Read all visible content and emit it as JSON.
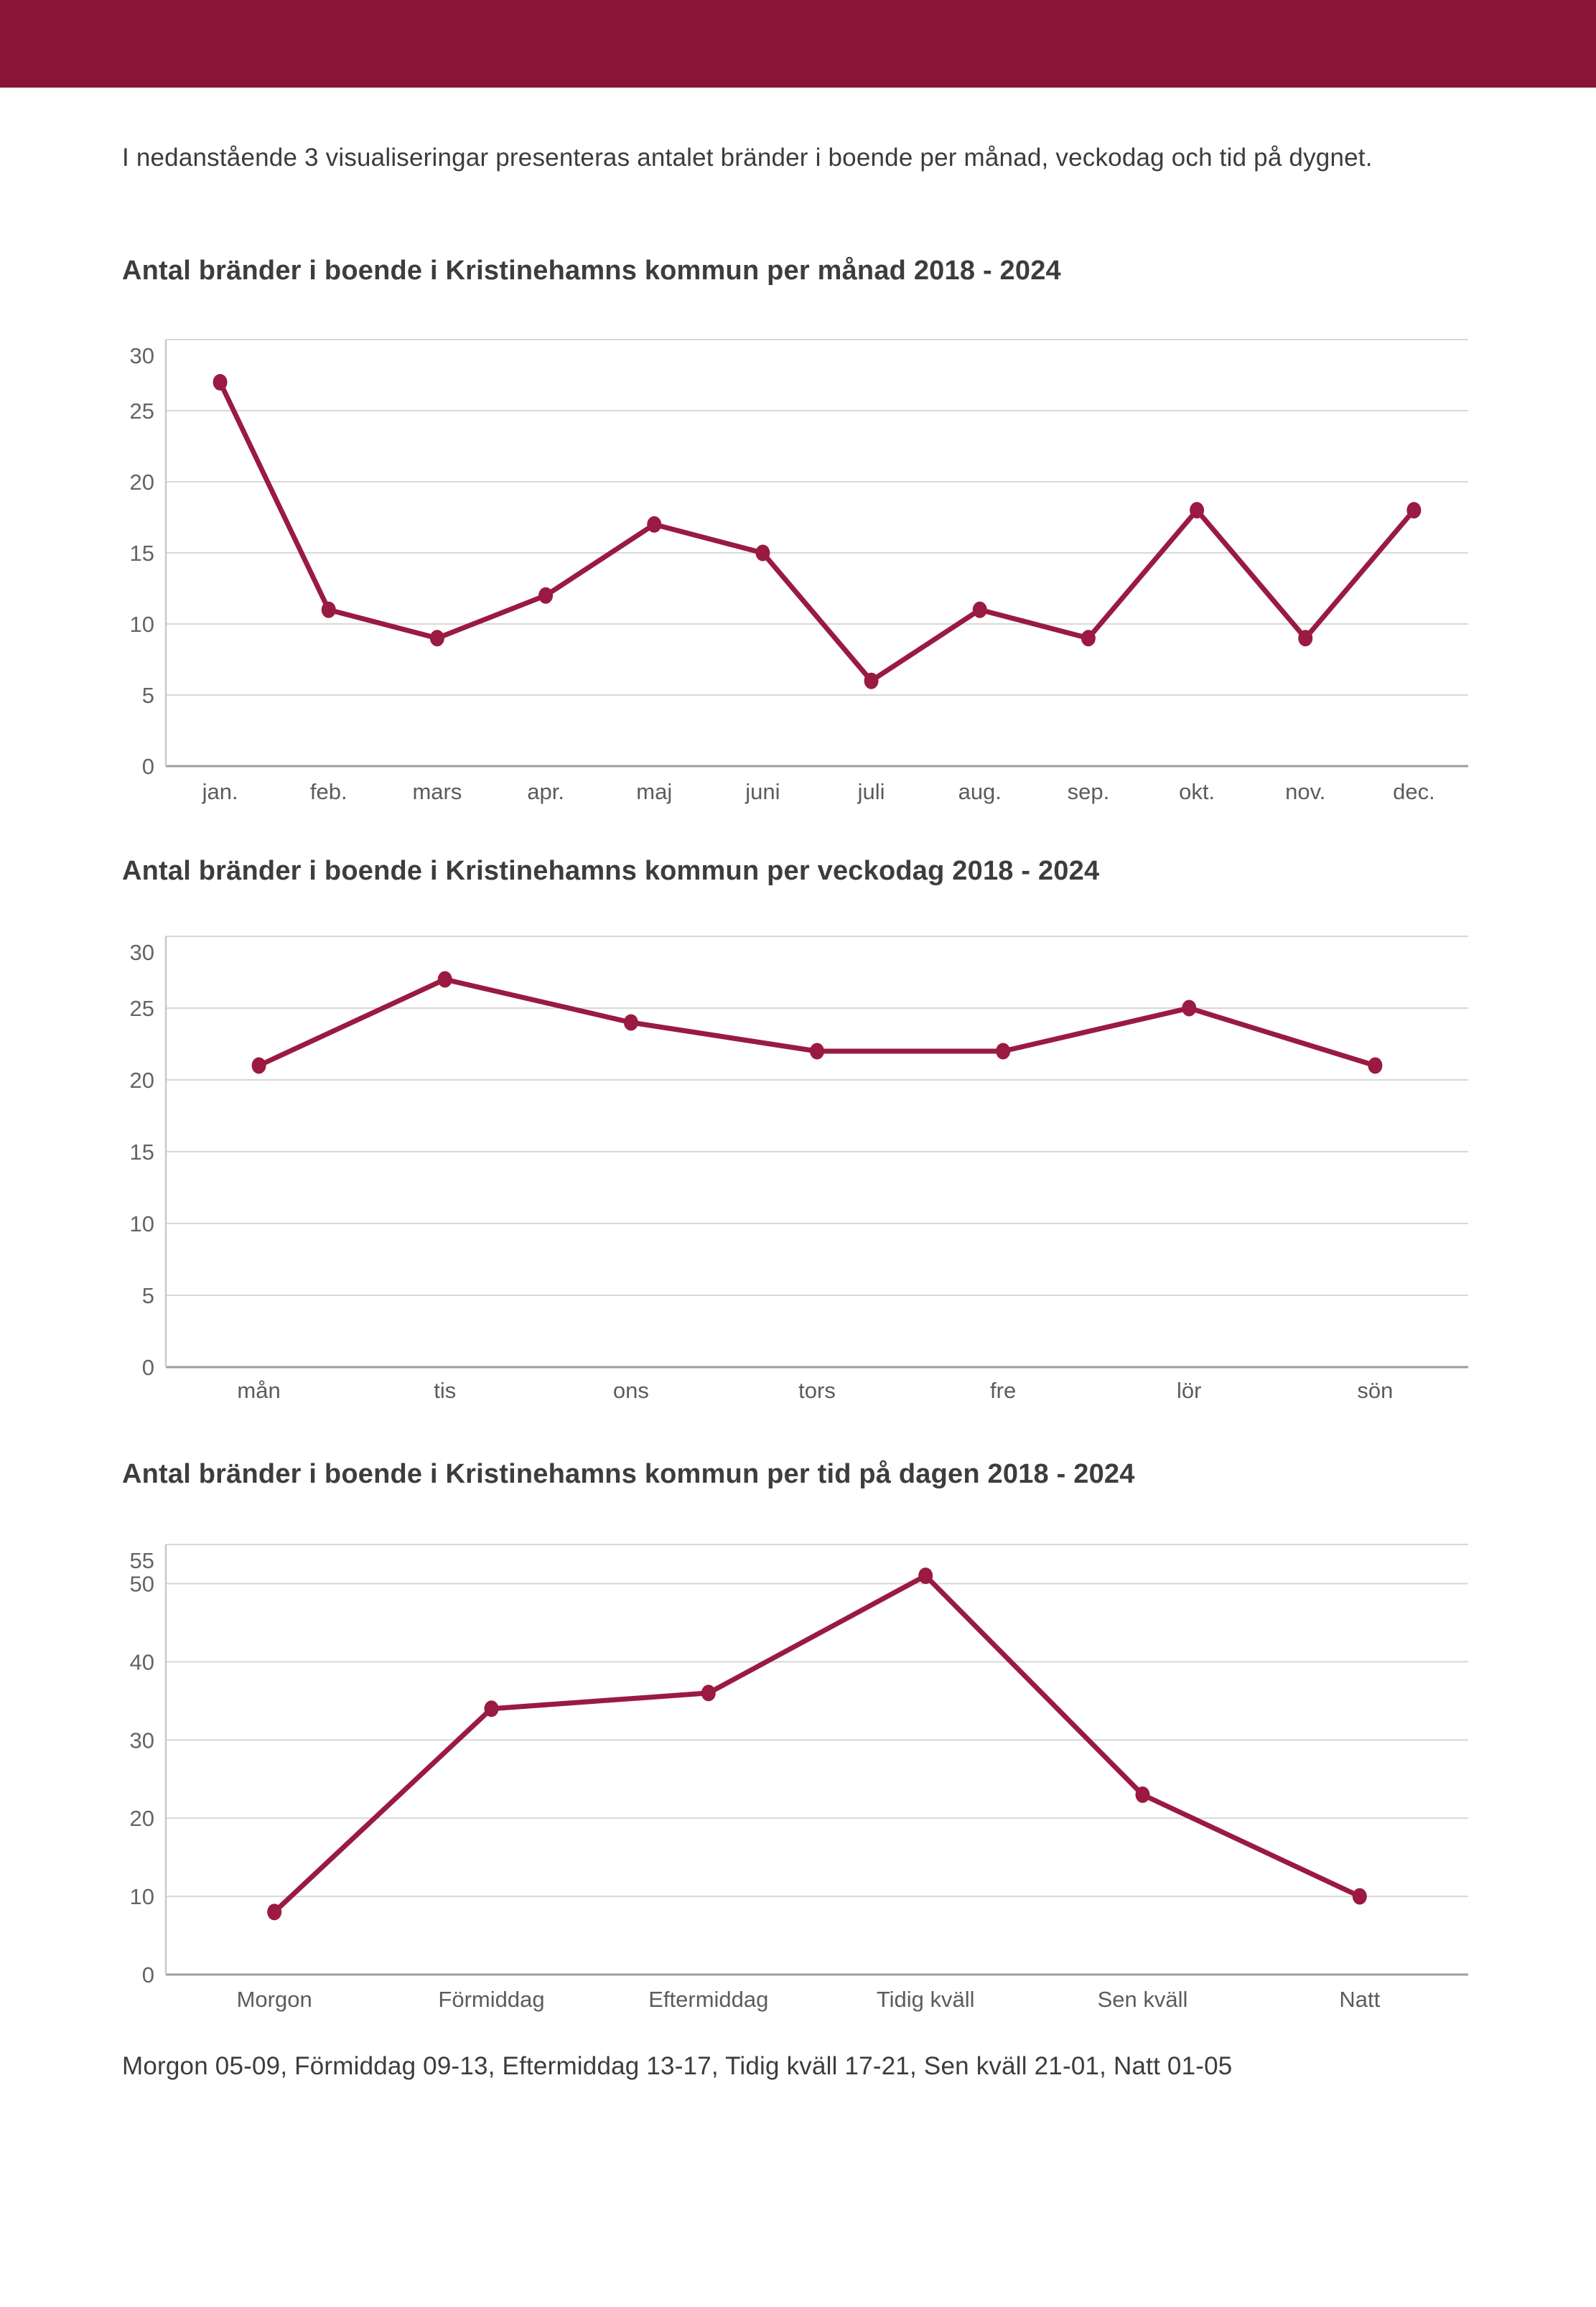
{
  "page": {
    "intro": "I nedanstående 3 visualiseringar presenteras antalet bränder i boende per månad, veckodag och tid på dygnet.",
    "footer_note": "Morgon 05-09, Förmiddag 09-13, Eftermiddag 13-17, Tidig kväll 17-21, Sen kväll 21-01, Natt 01-05"
  },
  "colors": {
    "header_bar": "#8a1538",
    "line": "#9a1a42",
    "grid": "#d8d8d8",
    "axis": "#c9c9c9",
    "zero_line": "#9e9e9e",
    "tick_label": "#646464",
    "x_label": "#5c5c5c"
  },
  "chart_data": [
    {
      "type": "line",
      "title": "Antal bränder i boende i Kristinehamns kommun per månad 2018 - 2024",
      "categories": [
        "jan.",
        "feb.",
        "mars",
        "apr.",
        "maj",
        "juni",
        "juli",
        "aug.",
        "sep.",
        "okt.",
        "nov.",
        "dec."
      ],
      "values": [
        27,
        11,
        9,
        12,
        17,
        15,
        6,
        11,
        9,
        18,
        9,
        18
      ],
      "xlabel": "",
      "ylabel": "",
      "ylim": [
        0,
        30
      ],
      "yticks": [
        0,
        5,
        10,
        15,
        20,
        25,
        30
      ],
      "grid": true,
      "legend": "none"
    },
    {
      "type": "line",
      "title": "Antal bränder i boende i Kristinehamns kommun per veckodag 2018 - 2024",
      "categories": [
        "mån",
        "tis",
        "ons",
        "tors",
        "fre",
        "lör",
        "sön"
      ],
      "values": [
        21,
        27,
        24,
        22,
        22,
        25,
        21
      ],
      "xlabel": "",
      "ylabel": "",
      "ylim": [
        0,
        30
      ],
      "yticks": [
        0,
        5,
        10,
        15,
        20,
        25,
        30
      ],
      "grid": true,
      "legend": "none"
    },
    {
      "type": "line",
      "title": "Antal bränder i boende i Kristinehamns kommun per tid på dagen 2018 - 2024",
      "categories": [
        "Morgon",
        "Förmiddag",
        "Eftermiddag",
        "Tidig kväll",
        "Sen kväll",
        "Natt"
      ],
      "values": [
        8,
        34,
        36,
        51,
        23,
        10
      ],
      "xlabel": "",
      "ylabel": "",
      "ylim": [
        0,
        55
      ],
      "yticks": [
        0,
        10,
        20,
        30,
        40,
        50,
        55
      ],
      "grid": true,
      "legend": "none"
    }
  ]
}
